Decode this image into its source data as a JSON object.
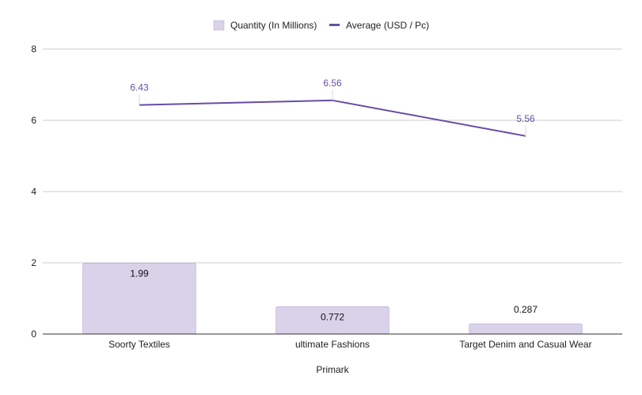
{
  "chart_data": {
    "type": "bar",
    "categories": [
      "Soorty Textiles",
      "ultimate Fashions",
      "Target Denim and Casual Wear"
    ],
    "series": [
      {
        "name": "Quantity (In Millions)",
        "type": "bar",
        "values": [
          1.99,
          0.772,
          0.287
        ],
        "labels": [
          "1.99",
          "0.772",
          "0.287"
        ],
        "color": "#d9d2e9"
      },
      {
        "name": "Average (USD / Pc)",
        "type": "line",
        "values": [
          6.43,
          6.56,
          5.56
        ],
        "labels": [
          "6.43",
          "6.56",
          "5.56"
        ],
        "color": "#674ea7"
      }
    ],
    "xlabel": "Primark",
    "ylabel": "",
    "ylim": [
      0,
      8
    ],
    "yticks": [
      "0",
      "2",
      "4",
      "6",
      "8"
    ],
    "grid": true,
    "legend": "top-center"
  }
}
